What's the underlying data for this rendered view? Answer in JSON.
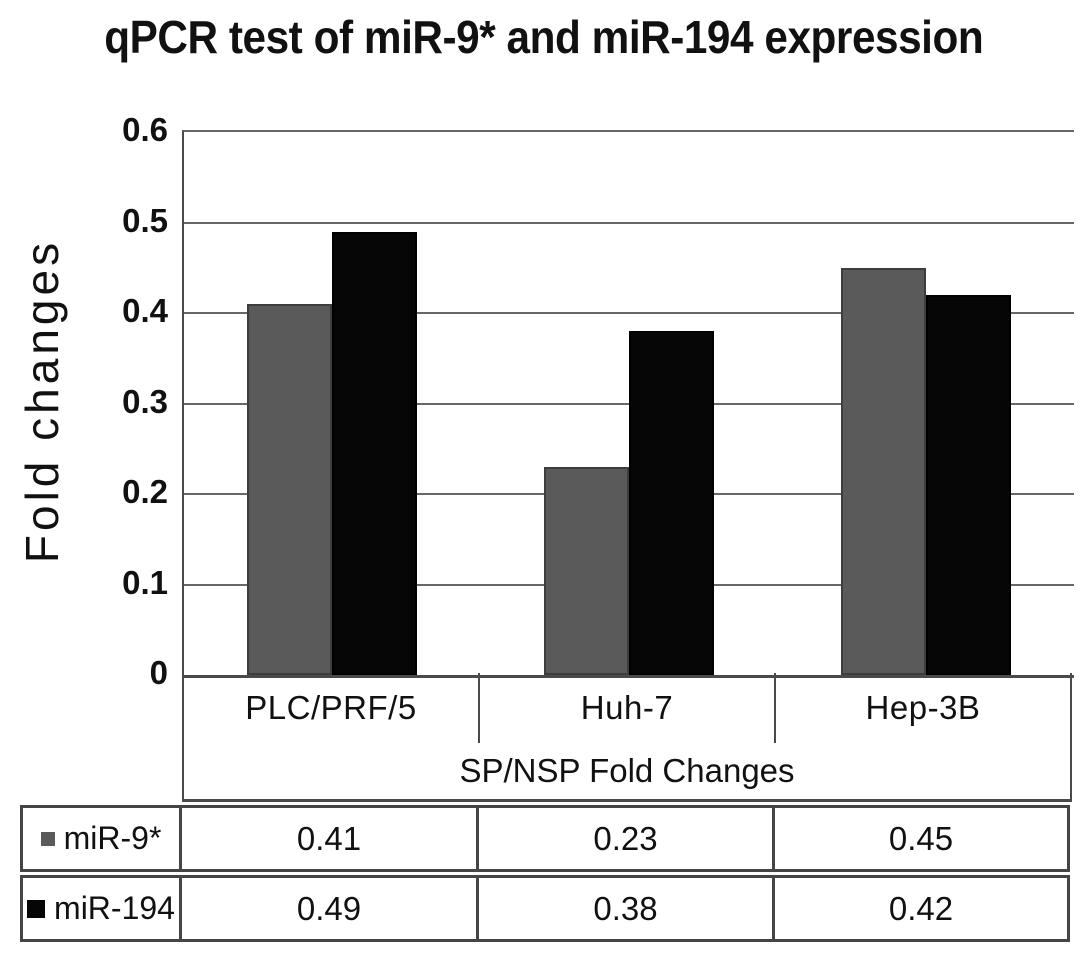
{
  "title": "qPCR test of miR-9* and miR-194 expression",
  "y_axis": {
    "label": "Fold changes",
    "ticks": [
      "0.6",
      "0.5",
      "0.4",
      "0.3",
      "0.2",
      "0.1",
      "0"
    ]
  },
  "x_axis": {
    "label": "SP/NSP Fold Changes"
  },
  "chart_data": {
    "type": "bar",
    "title": "qPCR test of miR-9* and miR-194 expression",
    "categories": [
      "PLC/PRF/5",
      "Huh-7",
      "Hep-3B"
    ],
    "series": [
      {
        "name": "miR-9*",
        "color": "#5a5a5a",
        "border_color": "#3d3d3d",
        "values": [
          0.41,
          0.23,
          0.45
        ]
      },
      {
        "name": "miR-194",
        "color": "#060606",
        "border_color": "#000000",
        "values": [
          0.49,
          0.38,
          0.42
        ]
      }
    ],
    "xlabel": "SP/NSP Fold Changes",
    "ylabel": "Fold changes",
    "ylim": [
      0,
      0.6
    ],
    "ytick_step": 0.1,
    "grid": true,
    "legend_position": "table-below-left"
  },
  "colors": {
    "background": "#ffffff",
    "gridline": "#686868",
    "axis": "#4a4a4a",
    "table_border": "#454545",
    "text": "#111111"
  }
}
